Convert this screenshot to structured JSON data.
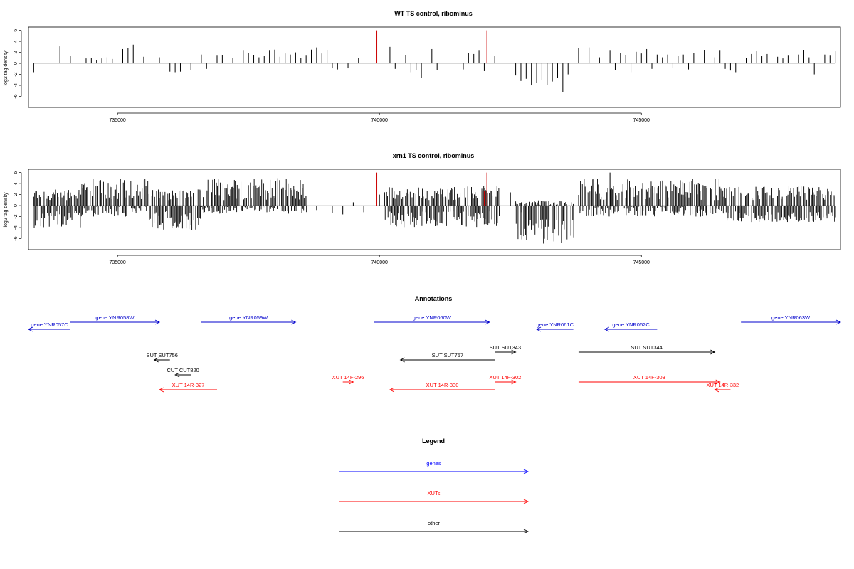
{
  "chart_data": [
    {
      "type": "bar",
      "title": "WT TS control, ribominus",
      "ylabel": "log2 tag density",
      "xlabel": "",
      "xlim": [
        733300,
        748800
      ],
      "ylim": [
        -8,
        6.6
      ],
      "xticks": [
        735000,
        740000,
        745000
      ],
      "xtick_labels": [
        "735000",
        "740000",
        "745000"
      ],
      "yticks": [
        -6,
        -4,
        -2,
        0,
        2,
        4,
        6
      ],
      "ytick_labels": [
        "-6",
        "-4",
        "-2",
        "0",
        "2",
        "4",
        "6"
      ],
      "grid": false,
      "series": [
        {
          "color": "#000000",
          "points": [
            [
              733400,
              -1.6
            ],
            [
              733900,
              3.1
            ],
            [
              734100,
              1.3
            ],
            [
              734400,
              0.9
            ],
            [
              734500,
              1.0
            ],
            [
              734600,
              0.6
            ],
            [
              734700,
              0.9
            ],
            [
              734800,
              1.1
            ],
            [
              734900,
              0.8
            ],
            [
              735100,
              2.6
            ],
            [
              735300,
              3.4
            ],
            [
              735200,
              2.8
            ],
            [
              735500,
              1.2
            ],
            [
              735800,
              1.1
            ],
            [
              736000,
              -1.5
            ],
            [
              736100,
              -1.6
            ],
            [
              736200,
              -1.5
            ],
            [
              736400,
              -1.2
            ],
            [
              736600,
              1.6
            ],
            [
              736700,
              -1.0
            ],
            [
              736900,
              1.4
            ],
            [
              737000,
              1.5
            ],
            [
              737200,
              1.0
            ],
            [
              737400,
              2.3
            ],
            [
              737500,
              1.9
            ],
            [
              737600,
              1.5
            ],
            [
              737700,
              1.1
            ],
            [
              737800,
              1.3
            ],
            [
              737900,
              2.3
            ],
            [
              738000,
              2.5
            ],
            [
              738100,
              1.2
            ],
            [
              738200,
              1.8
            ],
            [
              738300,
              1.6
            ],
            [
              738400,
              2.0
            ],
            [
              738500,
              1.0
            ],
            [
              738600,
              1.4
            ],
            [
              738700,
              2.5
            ],
            [
              738800,
              2.9
            ],
            [
              738900,
              1.8
            ],
            [
              739000,
              2.4
            ],
            [
              739100,
              -0.9
            ],
            [
              739200,
              -1.1
            ],
            [
              739400,
              -0.9
            ],
            [
              739600,
              1.0
            ],
            [
              740200,
              3.0
            ],
            [
              740300,
              -1.0
            ],
            [
              740500,
              1.5
            ],
            [
              740600,
              -1.6
            ],
            [
              740700,
              -1.2
            ],
            [
              740800,
              -2.6
            ],
            [
              741000,
              2.6
            ],
            [
              741100,
              -1.2
            ],
            [
              741600,
              -1.1
            ],
            [
              741700,
              1.9
            ],
            [
              741800,
              1.7
            ],
            [
              741900,
              2.3
            ],
            [
              742000,
              -1.4
            ],
            [
              742200,
              1.3
            ],
            [
              742600,
              -2.2
            ],
            [
              742700,
              -3.2
            ],
            [
              742800,
              -2.8
            ],
            [
              742900,
              -4.0
            ],
            [
              743000,
              -3.6
            ],
            [
              743100,
              -3.1
            ],
            [
              743200,
              -3.9
            ],
            [
              743300,
              -3.3
            ],
            [
              743400,
              -2.7
            ],
            [
              743500,
              -5.2
            ],
            [
              743600,
              -2.0
            ],
            [
              743800,
              2.8
            ],
            [
              744000,
              2.9
            ],
            [
              744200,
              1.1
            ],
            [
              744400,
              2.3
            ],
            [
              744500,
              -1.2
            ],
            [
              744600,
              1.9
            ],
            [
              744700,
              1.5
            ],
            [
              744800,
              -1.6
            ],
            [
              744900,
              2.1
            ],
            [
              745000,
              1.8
            ],
            [
              745100,
              2.6
            ],
            [
              745200,
              -1.0
            ],
            [
              745300,
              1.6
            ],
            [
              745400,
              1.1
            ],
            [
              745500,
              1.6
            ],
            [
              745600,
              -0.9
            ],
            [
              745700,
              1.3
            ],
            [
              745800,
              1.6
            ],
            [
              745900,
              -1.1
            ],
            [
              746000,
              1.9
            ],
            [
              746200,
              2.4
            ],
            [
              746400,
              1.1
            ],
            [
              746500,
              2.3
            ],
            [
              746600,
              -1.0
            ],
            [
              746700,
              -1.3
            ],
            [
              746800,
              -1.6
            ],
            [
              747000,
              1.0
            ],
            [
              747100,
              1.7
            ],
            [
              747200,
              2.2
            ],
            [
              747300,
              1.3
            ],
            [
              747400,
              1.7
            ],
            [
              747600,
              1.2
            ],
            [
              747700,
              0.9
            ],
            [
              747800,
              1.4
            ],
            [
              748000,
              1.6
            ],
            [
              748100,
              2.4
            ],
            [
              748200,
              1.1
            ],
            [
              748300,
              -2.0
            ],
            [
              748500,
              1.6
            ],
            [
              748600,
              1.4
            ],
            [
              748700,
              2.2
            ]
          ]
        },
        {
          "color": "#cc0000",
          "points": [
            [
              739950,
              6.0
            ],
            [
              742050,
              6.0
            ]
          ]
        }
      ]
    },
    {
      "type": "bar",
      "title": "xrn1 TS control, ribominus",
      "ylabel": "log2 tag density",
      "xlabel": "",
      "xlim": [
        733300,
        748800
      ],
      "ylim": [
        -8,
        6.6
      ],
      "xticks": [
        735000,
        740000,
        745000
      ],
      "xtick_labels": [
        "735000",
        "740000",
        "745000"
      ],
      "yticks": [
        -6,
        -4,
        -2,
        0,
        2,
        4,
        6
      ],
      "ytick_labels": [
        "-6",
        "-4",
        "-2",
        "0",
        "2",
        "4",
        "6"
      ],
      "grid": false,
      "series": [
        {
          "color": "#000000",
          "dense_blocks": [
            {
              "start": 733400,
              "end": 734300,
              "pos": [
                1,
                3
              ],
              "neg": [
                1,
                4
              ]
            },
            {
              "start": 734300,
              "end": 735600,
              "pos": [
                1,
                5
              ],
              "neg": [
                0,
                2
              ]
            },
            {
              "start": 735600,
              "end": 736600,
              "pos": [
                1,
                3
              ],
              "neg": [
                1,
                4.5
              ]
            },
            {
              "start": 736600,
              "end": 738600,
              "pos": [
                1,
                5
              ],
              "neg": [
                0,
                1.5
              ]
            },
            {
              "start": 740100,
              "end": 742300,
              "pos": [
                1,
                3.5
              ],
              "neg": [
                1,
                4
              ]
            },
            {
              "start": 742600,
              "end": 743700,
              "pos": [
                0,
                1
              ],
              "neg": [
                2,
                7
              ]
            },
            {
              "start": 743800,
              "end": 746500,
              "pos": [
                1,
                5
              ],
              "neg": [
                0,
                2
              ]
            },
            {
              "start": 746500,
              "end": 748700,
              "pos": [
                1,
                3.5
              ],
              "neg": [
                1,
                3
              ]
            }
          ],
          "points": [
            [
              738800,
              -0.8
            ],
            [
              739100,
              -1.3
            ],
            [
              739300,
              -1.6
            ],
            [
              739500,
              0.6
            ],
            [
              739700,
              -1.2
            ],
            [
              740000,
              2.0
            ],
            [
              742500,
              2.4
            ],
            [
              742700,
              -1.2
            ],
            [
              744400,
              6.0
            ]
          ]
        },
        {
          "color": "#cc0000",
          "points": [
            [
              739950,
              6.0
            ],
            [
              742050,
              6.0
            ],
            [
              742000,
              2.6
            ]
          ]
        }
      ]
    }
  ],
  "annotations": {
    "title": "Annotations",
    "features": [
      {
        "label": "gene YNR057C",
        "color": "#0000cc",
        "start": 733300,
        "end": 734100,
        "dir": "left",
        "row": 1
      },
      {
        "label": "gene YNR058W",
        "color": "#0000cc",
        "start": 734100,
        "end": 735800,
        "dir": "right",
        "row": 0
      },
      {
        "label": "gene YNR059W",
        "color": "#0000cc",
        "start": 736600,
        "end": 738400,
        "dir": "right",
        "row": 0
      },
      {
        "label": "gene YNR060W",
        "color": "#0000cc",
        "start": 739900,
        "end": 742100,
        "dir": "right",
        "row": 0
      },
      {
        "label": "gene YNR061C",
        "color": "#0000cc",
        "start": 743000,
        "end": 743700,
        "dir": "left",
        "row": 1
      },
      {
        "label": "gene YNR062C",
        "color": "#0000cc",
        "start": 744300,
        "end": 745300,
        "dir": "left",
        "row": 1
      },
      {
        "label": "gene YNR063W",
        "color": "#0000cc",
        "start": 746900,
        "end": 748800,
        "dir": "right",
        "row": 0
      },
      {
        "label": "SUT SUT756",
        "color": "#000000",
        "start": 735700,
        "end": 736000,
        "dir": "left",
        "row": 3
      },
      {
        "label": "SUT SUT757",
        "color": "#000000",
        "start": 740400,
        "end": 742200,
        "dir": "left",
        "row": 3
      },
      {
        "label": "SUT SUT343",
        "color": "#000000",
        "start": 742200,
        "end": 742600,
        "dir": "right",
        "row": 2
      },
      {
        "label": "SUT SUT344",
        "color": "#000000",
        "start": 743800,
        "end": 746400,
        "dir": "right",
        "row": 2
      },
      {
        "label": "CUT CUT820",
        "color": "#000000",
        "start": 736100,
        "end": 736400,
        "dir": "left",
        "row": 4
      },
      {
        "label": "XUT 14R-327",
        "color": "#ff0000",
        "start": 735800,
        "end": 736900,
        "dir": "left",
        "row": 6
      },
      {
        "label": "XUT 14F-296",
        "color": "#ff0000",
        "start": 739300,
        "end": 739500,
        "dir": "right",
        "row": 5
      },
      {
        "label": "XUT 14R-330",
        "color": "#ff0000",
        "start": 740200,
        "end": 742200,
        "dir": "left",
        "row": 6
      },
      {
        "label": "XUT 14F-302",
        "color": "#ff0000",
        "start": 742200,
        "end": 742600,
        "dir": "right",
        "row": 5
      },
      {
        "label": "XUT 14F-303",
        "color": "#ff0000",
        "start": 743800,
        "end": 746500,
        "dir": "right",
        "row": 5
      },
      {
        "label": "XUT 14R-332",
        "color": "#ff0000",
        "start": 746400,
        "end": 746700,
        "dir": "left",
        "row": 6
      }
    ]
  },
  "legend": {
    "title": "Legend",
    "items": [
      {
        "label": "genes",
        "color": "#0000ff"
      },
      {
        "label": "XUTs",
        "color": "#ff0000"
      },
      {
        "label": "other",
        "color": "#000000"
      }
    ]
  }
}
